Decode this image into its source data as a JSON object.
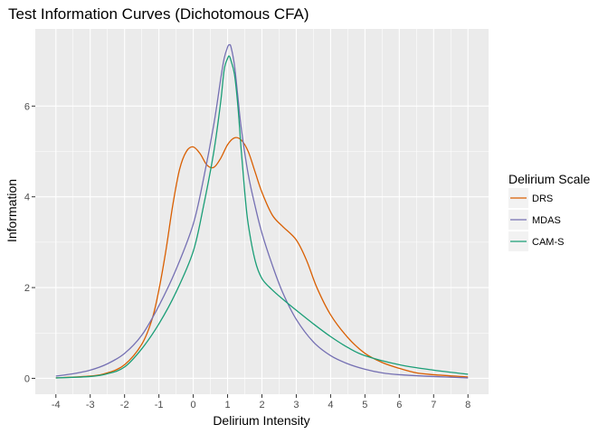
{
  "chart_data": {
    "type": "line",
    "title": "Test Information Curves (Dichotomous CFA)",
    "xlabel": "Delirium Intensity",
    "ylabel": "Information",
    "xlim": [
      -4.6,
      8.6
    ],
    "ylim": [
      -0.35,
      7.7
    ],
    "xticks": [
      -4,
      -3,
      -2,
      -1,
      0,
      1,
      2,
      3,
      4,
      5,
      6,
      7,
      8
    ],
    "xtick_labels": [
      "-4",
      "-3",
      "-2",
      "-1",
      "0",
      "1",
      "2",
      "3",
      "4",
      "5",
      "6",
      "7",
      "8"
    ],
    "yticks": [
      0,
      2,
      4,
      6
    ],
    "ytick_labels": [
      "0",
      "2",
      "4",
      "6"
    ],
    "grid": true,
    "legend": {
      "title": "Delirium Scale",
      "position": "right"
    },
    "series": [
      {
        "name": "DRS",
        "color": "#d95f02",
        "x": [
          -4,
          -3,
          -2.5,
          -2,
          -1.5,
          -1.2,
          -1,
          -0.8,
          -0.6,
          -0.4,
          -0.2,
          0,
          0.2,
          0.4,
          0.6,
          0.8,
          1,
          1.2,
          1.4,
          1.6,
          1.8,
          2,
          2.3,
          2.6,
          3,
          3.3,
          3.6,
          4,
          4.5,
          5,
          5.5,
          6,
          6.5,
          7,
          8
        ],
        "y": [
          0.01,
          0.05,
          0.12,
          0.3,
          0.75,
          1.3,
          1.95,
          2.8,
          3.8,
          4.6,
          5.0,
          5.1,
          4.95,
          4.7,
          4.65,
          4.85,
          5.15,
          5.3,
          5.25,
          5.0,
          4.55,
          4.1,
          3.6,
          3.35,
          3.05,
          2.6,
          2.0,
          1.4,
          0.9,
          0.55,
          0.35,
          0.22,
          0.12,
          0.08,
          0.03
        ]
      },
      {
        "name": "MDAS",
        "color": "#7570b3",
        "x": [
          -4,
          -3.5,
          -3,
          -2.5,
          -2,
          -1.5,
          -1,
          -0.5,
          0,
          0.3,
          0.6,
          0.8,
          0.9,
          1,
          1.05,
          1.1,
          1.2,
          1.3,
          1.4,
          1.6,
          1.8,
          2,
          2.3,
          2.6,
          3,
          3.5,
          4,
          4.5,
          5,
          5.5,
          6,
          7,
          8
        ],
        "y": [
          0.05,
          0.1,
          0.18,
          0.32,
          0.55,
          0.95,
          1.6,
          2.4,
          3.4,
          4.4,
          5.6,
          6.6,
          7.05,
          7.3,
          7.35,
          7.3,
          6.9,
          6.2,
          5.5,
          4.5,
          3.8,
          3.2,
          2.5,
          1.9,
          1.3,
          0.8,
          0.5,
          0.32,
          0.2,
          0.12,
          0.08,
          0.04,
          0.01
        ]
      },
      {
        "name": "CAM-S",
        "color": "#1b9e77",
        "x": [
          -4,
          -3,
          -2.5,
          -2,
          -1.5,
          -1,
          -0.5,
          0,
          0.3,
          0.6,
          0.8,
          0.9,
          1,
          1.05,
          1.1,
          1.2,
          1.3,
          1.4,
          1.5,
          1.6,
          1.8,
          2,
          2.3,
          2.6,
          3,
          3.5,
          4,
          4.5,
          5,
          6,
          7,
          8
        ],
        "y": [
          0.01,
          0.04,
          0.1,
          0.25,
          0.65,
          1.2,
          1.9,
          2.8,
          3.8,
          5.0,
          6.1,
          6.8,
          7.05,
          7.1,
          7.0,
          6.7,
          6.0,
          5.0,
          4.1,
          3.4,
          2.6,
          2.2,
          1.95,
          1.75,
          1.5,
          1.2,
          0.92,
          0.68,
          0.5,
          0.3,
          0.18,
          0.09
        ]
      }
    ]
  }
}
